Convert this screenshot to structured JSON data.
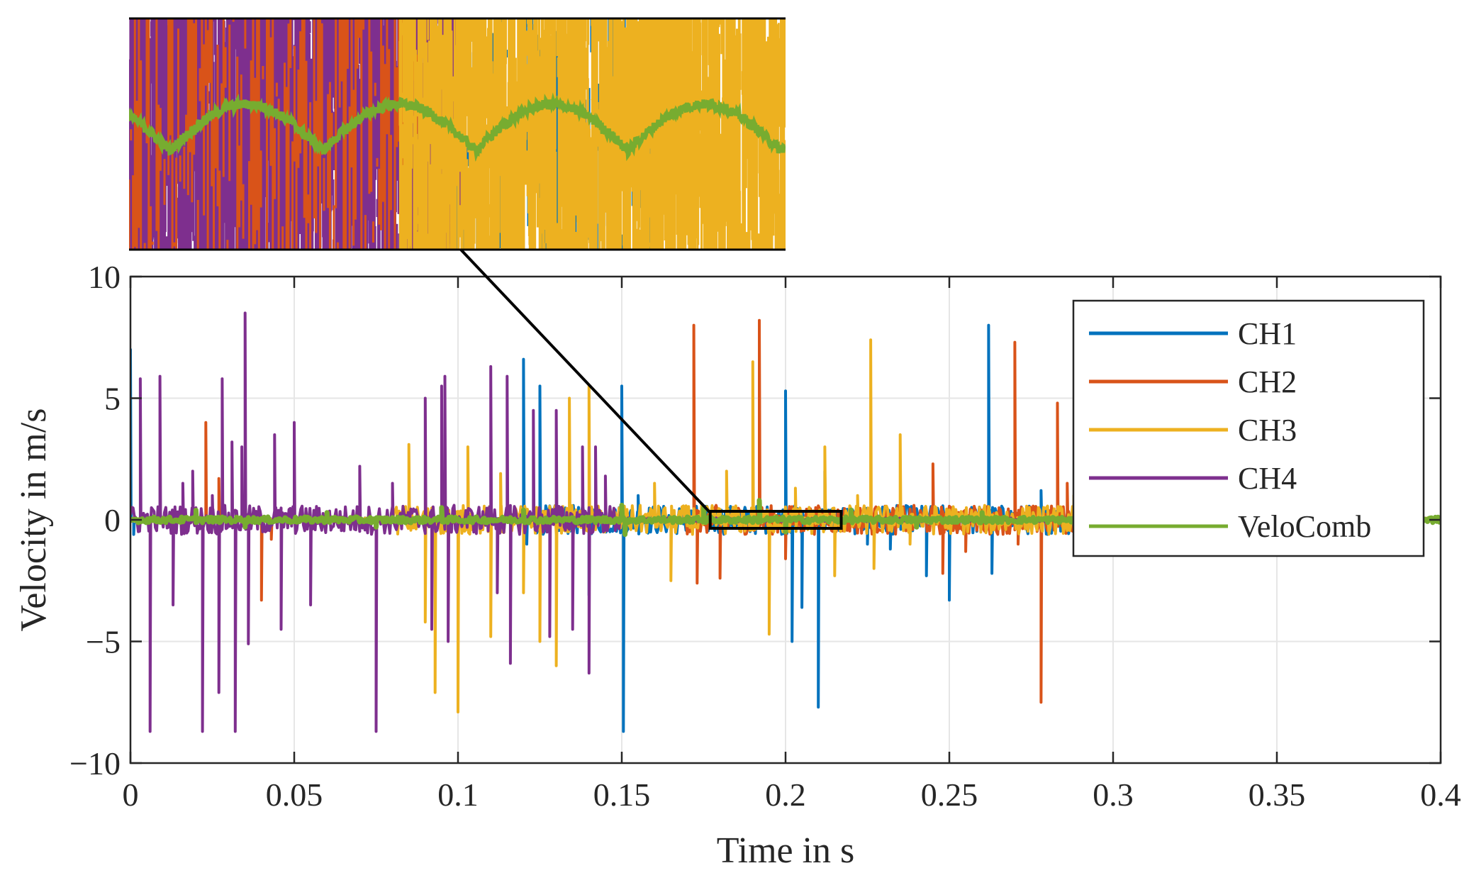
{
  "chart_data": {
    "type": "line",
    "title": "",
    "xlabel": "Time in s",
    "ylabel": "Velocity in m/s",
    "xlim": [
      0,
      0.4
    ],
    "ylim": [
      -10,
      10
    ],
    "x_ticks": [
      0,
      0.05,
      0.1,
      0.15,
      0.2,
      0.25,
      0.3,
      0.35,
      0.4
    ],
    "x_tick_labels": [
      "0",
      "0.05",
      "0.1",
      "0.15",
      "0.2",
      "0.25",
      "0.3",
      "0.35",
      "0.4"
    ],
    "y_ticks": [
      10,
      5,
      0,
      -5,
      -10
    ],
    "y_tick_labels": [
      "10",
      "5",
      "0",
      "−5",
      "−10"
    ],
    "grid": true,
    "legend_position": "top-right",
    "inset": {
      "description": "magnified view",
      "xlim": [
        0.177,
        0.217
      ],
      "ylim": [
        -0.35,
        0.35
      ]
    },
    "series": [
      {
        "name": "CH1",
        "color": "#0072BD",
        "spikes": [
          [
            0.0,
            7.0
          ],
          [
            0.001,
            -0.6
          ],
          [
            0.12,
            6.6
          ],
          [
            0.121,
            -1.0
          ],
          [
            0.125,
            5.5
          ],
          [
            0.14,
            -3.1
          ],
          [
            0.15,
            5.5
          ],
          [
            0.1505,
            -8.7
          ],
          [
            0.155,
            1.0
          ],
          [
            0.2,
            5.3
          ],
          [
            0.202,
            -5.0
          ],
          [
            0.205,
            -3.6
          ],
          [
            0.21,
            -7.7
          ],
          [
            0.212,
            2.0
          ],
          [
            0.225,
            -1.0
          ],
          [
            0.232,
            -1.2
          ],
          [
            0.243,
            -2.3
          ],
          [
            0.25,
            -3.3
          ],
          [
            0.262,
            8.0
          ],
          [
            0.263,
            -2.2
          ],
          [
            0.278,
            1.2
          ],
          [
            0.283,
            1.8
          ]
        ]
      },
      {
        "name": "CH2",
        "color": "#D95319",
        "spikes": [
          [
            0.023,
            4.0
          ],
          [
            0.027,
            1.7
          ],
          [
            0.04,
            -3.3
          ],
          [
            0.043,
            -0.8
          ],
          [
            0.172,
            8.0
          ],
          [
            0.173,
            -2.6
          ],
          [
            0.18,
            -2.4
          ],
          [
            0.192,
            8.2
          ],
          [
            0.2,
            -1.6
          ],
          [
            0.245,
            2.3
          ],
          [
            0.248,
            -2.2
          ],
          [
            0.255,
            -1.3
          ],
          [
            0.27,
            7.3
          ],
          [
            0.271,
            -1.0
          ],
          [
            0.278,
            -7.5
          ],
          [
            0.283,
            4.8
          ],
          [
            0.286,
            1.5
          ]
        ]
      },
      {
        "name": "CH3",
        "color": "#EDB120",
        "spikes": [
          [
            0.085,
            3.1
          ],
          [
            0.09,
            -4.2
          ],
          [
            0.093,
            -7.1
          ],
          [
            0.1,
            -7.9
          ],
          [
            0.103,
            3.0
          ],
          [
            0.11,
            -4.8
          ],
          [
            0.113,
            1.9
          ],
          [
            0.12,
            -3.0
          ],
          [
            0.125,
            -5.0
          ],
          [
            0.13,
            -6.0
          ],
          [
            0.134,
            5.0
          ],
          [
            0.14,
            5.5
          ],
          [
            0.16,
            1.5
          ],
          [
            0.165,
            -2.5
          ],
          [
            0.182,
            2.0
          ],
          [
            0.19,
            6.5
          ],
          [
            0.195,
            -4.7
          ],
          [
            0.203,
            1.3
          ],
          [
            0.212,
            3.0
          ],
          [
            0.215,
            -2.3
          ],
          [
            0.222,
            1.0
          ],
          [
            0.226,
            7.4
          ],
          [
            0.227,
            -2.0
          ],
          [
            0.235,
            3.5
          ],
          [
            0.238,
            -1.0
          ],
          [
            0.288,
            1.0
          ]
        ]
      },
      {
        "name": "CH4",
        "color": "#7E2F8E",
        "spikes": [
          [
            0.003,
            5.8
          ],
          [
            0.006,
            -8.7
          ],
          [
            0.009,
            5.9
          ],
          [
            0.013,
            -3.5
          ],
          [
            0.016,
            1.5
          ],
          [
            0.019,
            2.0
          ],
          [
            0.022,
            -8.7
          ],
          [
            0.025,
            1.0
          ],
          [
            0.027,
            -7.1
          ],
          [
            0.028,
            5.8
          ],
          [
            0.031,
            3.2
          ],
          [
            0.032,
            -8.7
          ],
          [
            0.034,
            3.0
          ],
          [
            0.035,
            8.5
          ],
          [
            0.036,
            -5.1
          ],
          [
            0.044,
            3.5
          ],
          [
            0.046,
            -4.5
          ],
          [
            0.05,
            4.0
          ],
          [
            0.055,
            -3.5
          ],
          [
            0.07,
            2.2
          ],
          [
            0.075,
            -8.7
          ],
          [
            0.08,
            1.5
          ],
          [
            0.09,
            5.0
          ],
          [
            0.092,
            -4.5
          ],
          [
            0.095,
            5.5
          ],
          [
            0.096,
            5.9
          ],
          [
            0.097,
            -5.0
          ],
          [
            0.11,
            6.3
          ],
          [
            0.112,
            -3.0
          ],
          [
            0.115,
            5.9
          ],
          [
            0.116,
            -5.9
          ],
          [
            0.123,
            4.5
          ],
          [
            0.128,
            -4.8
          ],
          [
            0.13,
            4.5
          ],
          [
            0.135,
            -4.5
          ],
          [
            0.138,
            3.0
          ],
          [
            0.14,
            -6.3
          ],
          [
            0.142,
            3.0
          ],
          [
            0.145,
            1.8
          ]
        ]
      },
      {
        "name": "VeloComb",
        "color": "#77AC30",
        "spikes": [
          [
            0.02,
            0.4
          ],
          [
            0.035,
            -0.3
          ],
          [
            0.06,
            0.3
          ],
          [
            0.075,
            -0.3
          ],
          [
            0.095,
            0.5
          ],
          [
            0.12,
            0.4
          ],
          [
            0.15,
            0.6
          ],
          [
            0.151,
            -0.6
          ],
          [
            0.175,
            0.5
          ],
          [
            0.192,
            0.8
          ],
          [
            0.2,
            -0.5
          ],
          [
            0.22,
            0.4
          ],
          [
            0.24,
            -0.3
          ],
          [
            0.26,
            0.3
          ],
          [
            0.29,
            0.2
          ]
        ]
      }
    ]
  }
}
